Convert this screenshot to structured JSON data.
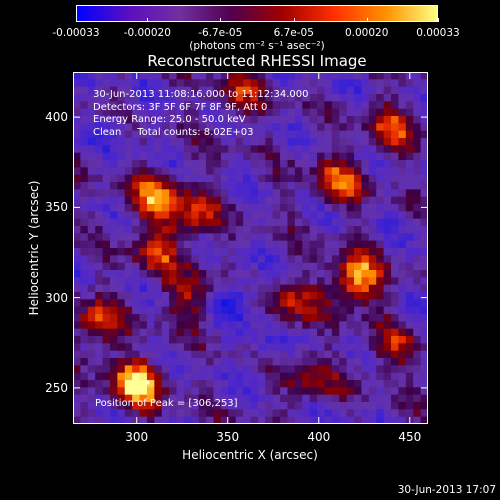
{
  "chart_data": {
    "type": "heatmap",
    "title": "Reconstructed RHESSI Image",
    "xlabel": "Heliocentric X (arcsec)",
    "ylabel": "Heliocentric Y (arcsec)",
    "xlim": [
      265,
      460
    ],
    "ylim": [
      230,
      425
    ],
    "xticks": [
      "300",
      "350",
      "400",
      "450"
    ],
    "xtick_values": [
      300,
      350,
      400,
      450
    ],
    "yticks": [
      "250",
      "300",
      "350",
      "400"
    ],
    "ytick_values": [
      250,
      300,
      350,
      400
    ],
    "colorbar": {
      "ticks": [
        "-0.00033",
        "-0.00020",
        "-6.7e-05",
        "6.7e-05",
        "0.00020",
        "0.00033"
      ],
      "tick_values": [
        -0.00033,
        -0.0002,
        -6.7e-05,
        6.7e-05,
        0.0002,
        0.00033
      ],
      "range": [
        -0.00033,
        0.00033
      ],
      "units": "(photons cm⁻² s⁻¹ asec⁻²)",
      "colors": [
        "#0000ff",
        "#5a0fc0",
        "#7030a0",
        "#500050",
        "#a00000",
        "#ff3000",
        "#ff9000",
        "#ffff80"
      ]
    },
    "info_lines": [
      "30-Jun-2013 11:08:16.000 to 11:12:34.000",
      "Detectors: 3F 5F 6F 7F 8F 9F, Att 0",
      "Energy Range: 25.0 - 50.0 keV",
      "Clean     Total counts: 8.02E+03"
    ],
    "peak_label": "Position of Peak = [306,253]",
    "peak_position": [
      306,
      253
    ],
    "bright_regions": [
      {
        "x": 300,
        "y": 252,
        "amp": 1.0
      },
      {
        "x": 420,
        "y": 310,
        "amp": 0.95
      },
      {
        "x": 310,
        "y": 355,
        "amp": 0.65
      },
      {
        "x": 410,
        "y": 365,
        "amp": 0.6
      },
      {
        "x": 278,
        "y": 285,
        "amp": 0.6
      },
      {
        "x": 330,
        "y": 345,
        "amp": 0.55
      },
      {
        "x": 440,
        "y": 395,
        "amp": 0.55
      },
      {
        "x": 310,
        "y": 325,
        "amp": 0.5
      },
      {
        "x": 385,
        "y": 295,
        "amp": 0.5
      },
      {
        "x": 355,
        "y": 410,
        "amp": 0.45
      },
      {
        "x": 395,
        "y": 255,
        "amp": 0.45
      },
      {
        "x": 330,
        "y": 300,
        "amp": 0.5
      },
      {
        "x": 440,
        "y": 270,
        "amp": 0.45
      }
    ],
    "dark_regions": [
      {
        "x": 355,
        "y": 300,
        "amp": 0.9
      },
      {
        "x": 370,
        "y": 275,
        "amp": 0.5
      },
      {
        "x": 290,
        "y": 395,
        "amp": 0.4
      }
    ]
  },
  "timestamp": "30-Jun-2013 17:07"
}
